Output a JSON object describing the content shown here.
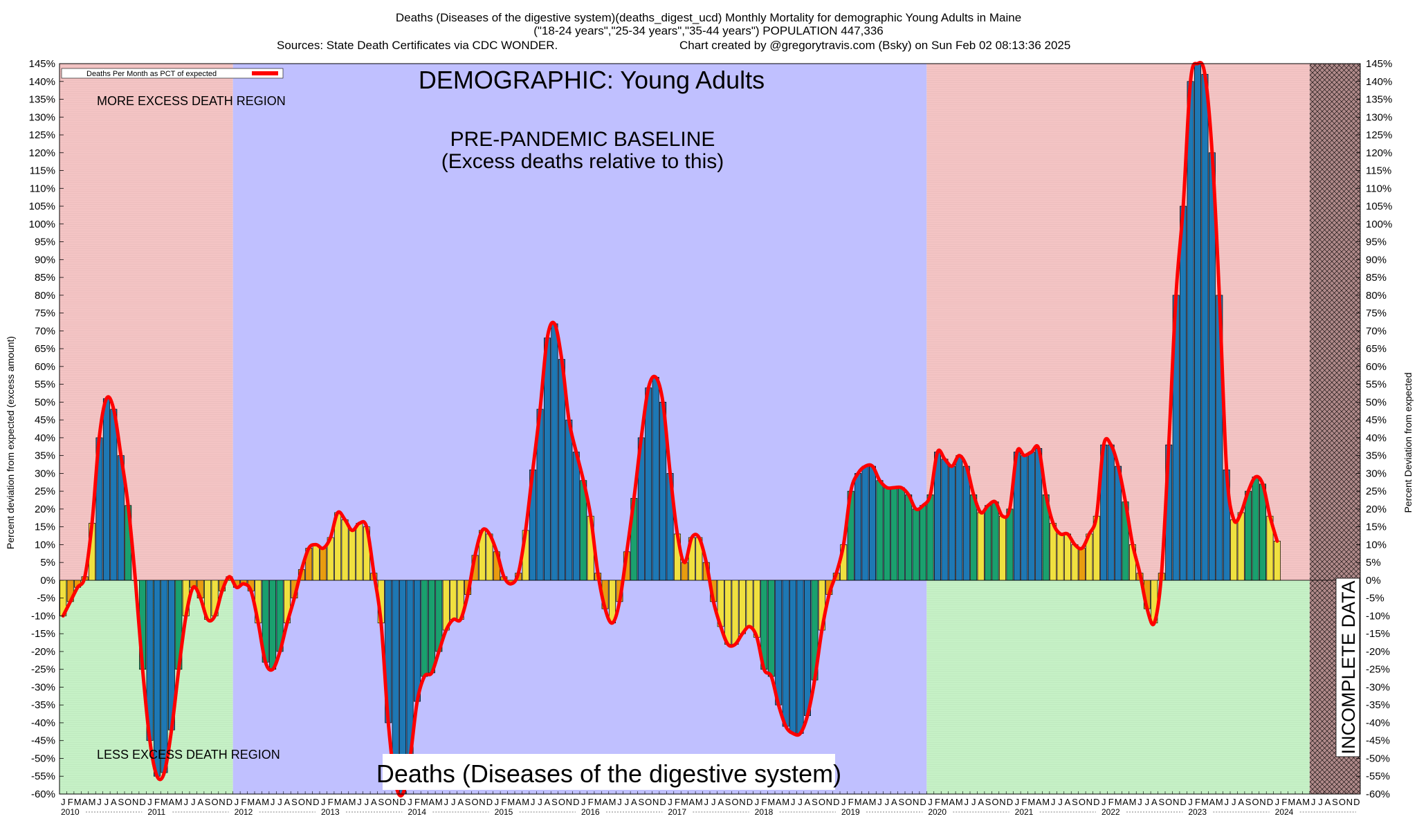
{
  "chart_data": {
    "type": "bar",
    "title_lines": [
      "Deaths (Diseases of the digestive system)(deaths_digest_ucd) Monthly Mortality for demographic Young Adults in Maine",
      "(\"18-24 years\",\"25-34 years\",\"35-44 years\") POPULATION 447,336",
      "Sources: State Death Certificates via CDC WONDER.",
      "Chart created by @gregorytravis.com (Bsky) on Sun Feb 02 08:13:36 2025"
    ],
    "ylabel_left": "Percent deviation from expected (excess amount)",
    "ylabel_right": "Percent Deviation from expected",
    "ylim": [
      -60,
      145
    ],
    "ytick_step": 5,
    "legend": {
      "label": "Deaths Per Month as PCT of expected",
      "color": "#ff0000",
      "position": "top-left"
    },
    "annotations": {
      "demographic": "DEMOGRAPHIC: Young Adults",
      "baseline_line1": "PRE-PANDEMIC BASELINE",
      "baseline_line2": "(Excess deaths relative to this)",
      "more_excess": "MORE EXCESS DEATH REGION",
      "less_excess": "LESS EXCESS DEATH REGION",
      "incomplete": "INCOMPLETE DATA",
      "bottom_label": "Deaths (Diseases of the digestive system)"
    },
    "month_letters": [
      "J",
      "F",
      "M",
      "A",
      "M",
      "J",
      "J",
      "A",
      "S",
      "O",
      "N",
      "D"
    ],
    "years": [
      "2010",
      "2011",
      "2012",
      "2013",
      "2014",
      "2015",
      "2016",
      "2017",
      "2018",
      "2019",
      "2020",
      "2021",
      "2022",
      "2023",
      "2024"
    ],
    "start": "2010-01",
    "colors": {
      "excess_region": "#f4c4c4",
      "deficit_region": "#c6f1c6",
      "baseline_region": "#c0c0ff",
      "incomplete_region": "#b08a8a",
      "line": "#ff0000",
      "bar_palette": [
        "#1e78b4",
        "#1aa06e",
        "#f0e040",
        "#e89c10"
      ]
    },
    "values": [
      -10,
      -6,
      -2,
      1,
      16,
      40,
      51,
      48,
      35,
      21,
      0,
      -25,
      -45,
      -55,
      -54,
      -42,
      -25,
      -10,
      -2,
      -5,
      -11,
      -10,
      -3,
      1,
      -2,
      -1,
      -3,
      -12,
      -23,
      -25,
      -20,
      -12,
      -5,
      3,
      9,
      10,
      9,
      12,
      19,
      17,
      14,
      16,
      15,
      2,
      -12,
      -40,
      -57,
      -60,
      -50,
      -34,
      -27,
      -26,
      -20,
      -14,
      -11,
      -11,
      -4,
      7,
      14,
      13,
      8,
      1,
      -1,
      2,
      14,
      31,
      48,
      68,
      72,
      62,
      45,
      36,
      28,
      18,
      2,
      -8,
      -12,
      -6,
      8,
      23,
      40,
      54,
      57,
      50,
      30,
      13,
      5,
      12,
      12,
      5,
      -6,
      -13,
      -18,
      -18,
      -15,
      -13,
      -16,
      -25,
      -27,
      -35,
      -41,
      -43,
      -43,
      -38,
      -28,
      -14,
      -4,
      2,
      10,
      25,
      30,
      32,
      32,
      28,
      26,
      26,
      26,
      24,
      20,
      21,
      24,
      36,
      34,
      32,
      35,
      32,
      24,
      19,
      21,
      22,
      18,
      20,
      36,
      35,
      36,
      37,
      24,
      16,
      13,
      13,
      10,
      9,
      13,
      18,
      38,
      38,
      32,
      22,
      10,
      2,
      -8,
      -12,
      2,
      38,
      80,
      105,
      140,
      145,
      142,
      120,
      80,
      31,
      17,
      19,
      25,
      29,
      27,
      18,
      11
    ]
  }
}
